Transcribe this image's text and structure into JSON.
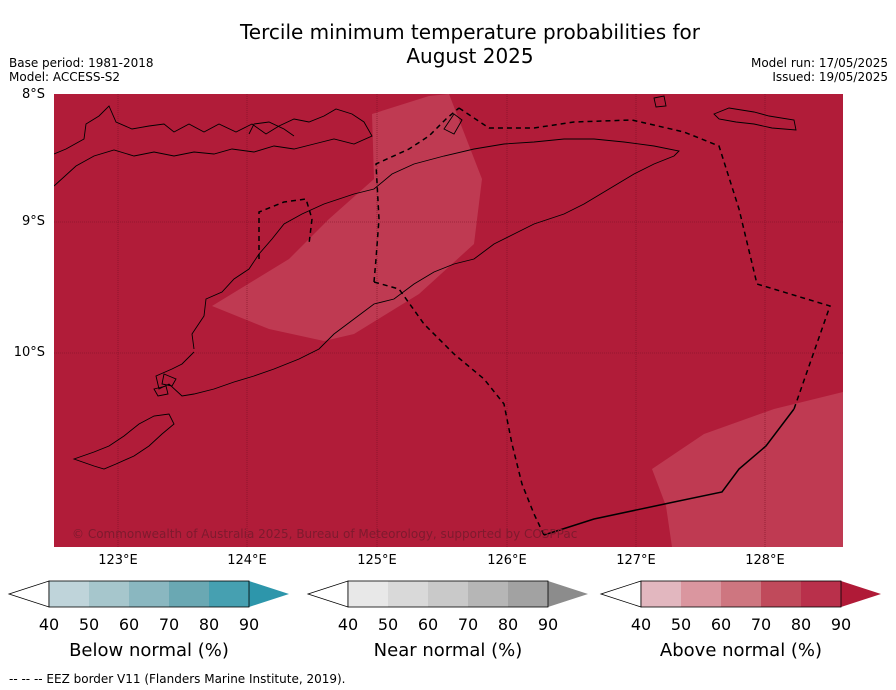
{
  "title_line1": "Tercile minimum temperature probabilities for",
  "title_line2": "August 2025",
  "base_period": "Base period: 1981-2018",
  "model": "Model: ACCESS-S2",
  "model_run": "Model run: 17/05/2025",
  "issued": "Issued: 19/05/2025",
  "map": {
    "lat_labels": [
      "8°S",
      "9°S",
      "10°S"
    ],
    "lon_labels": [
      "123°E",
      "124°E",
      "125°E",
      "126°E",
      "127°E",
      "128°E"
    ],
    "copyright": "© Commonwealth of Australia 2025, Bureau of Meteorology, supported by COSPPac",
    "colors": {
      "above_90": "#b11c39",
      "above_80": "#bf3a52",
      "coast": "#000000"
    }
  },
  "colorbars": [
    {
      "name": "below",
      "title": "Below normal (%)",
      "ticks": [
        "40",
        "50",
        "60",
        "70",
        "80",
        "90"
      ],
      "colors": [
        "#ffffff",
        "#bfd4da",
        "#a6c6cc",
        "#8ab7c0",
        "#6aa8b3",
        "#46a0b1",
        "#2d96ab"
      ]
    },
    {
      "name": "near",
      "title": "Near normal (%)",
      "ticks": [
        "40",
        "50",
        "60",
        "70",
        "80",
        "90"
      ],
      "colors": [
        "#ffffff",
        "#e8e8e8",
        "#d9d9d9",
        "#c9c9c9",
        "#b6b6b6",
        "#a2a2a2",
        "#8c8c8c"
      ]
    },
    {
      "name": "above",
      "title": "Above normal (%)",
      "ticks": [
        "40",
        "50",
        "60",
        "70",
        "80",
        "90"
      ],
      "colors": [
        "#ffffff",
        "#e2b7bf",
        "#da969f",
        "#ce7680",
        "#c04a5b",
        "#b9304b",
        "#b01a37"
      ]
    }
  ],
  "footer": "--  --  -- EEZ border V11 (Flanders Marine Institute, 2019)."
}
